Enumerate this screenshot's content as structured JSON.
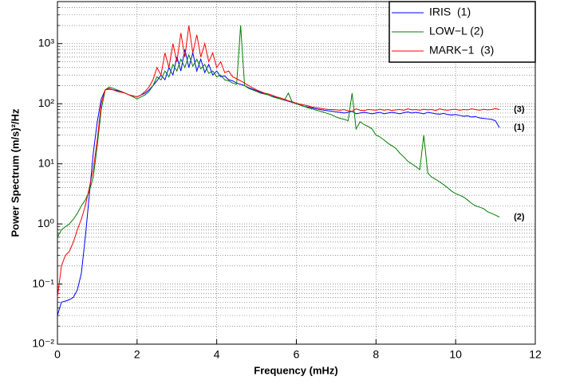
{
  "chart_data": {
    "type": "line",
    "xlabel": "Frequency (mHz)",
    "ylabel": "Power Spectrum (m/s)²/Hz",
    "log_y": true,
    "grid": true,
    "minor_grid": true,
    "legend": "upper right",
    "xlim": [
      0,
      12
    ],
    "xticks": [
      0,
      2,
      4,
      6,
      8,
      10,
      12
    ],
    "ylim": [
      0.01,
      5000
    ],
    "yticks": [
      {
        "value": 0.01,
        "label": "10⁻²"
      },
      {
        "value": 0.1,
        "label": "10⁻¹"
      },
      {
        "value": 1,
        "label": "10⁰"
      },
      {
        "value": 10,
        "label": "10¹"
      },
      {
        "value": 100,
        "label": "10²"
      },
      {
        "value": 1000,
        "label": "10³"
      }
    ],
    "x": [
      0,
      0.1,
      0.2,
      0.3,
      0.4,
      0.5,
      0.6,
      0.7,
      0.8,
      0.9,
      1,
      1.1,
      1.2,
      1.3,
      1.4,
      1.5,
      1.6,
      1.7,
      1.8,
      1.9,
      2,
      2.1,
      2.2,
      2.3,
      2.4,
      2.5,
      2.6,
      2.7,
      2.8,
      2.9,
      3,
      3.1,
      3.2,
      3.3,
      3.4,
      3.5,
      3.6,
      3.7,
      3.8,
      3.9,
      4,
      4.1,
      4.2,
      4.3,
      4.4,
      4.5,
      4.6,
      4.7,
      4.8,
      4.9,
      5,
      5.1,
      5.2,
      5.3,
      5.4,
      5.5,
      5.6,
      5.7,
      5.8,
      5.9,
      6,
      6.1,
      6.2,
      6.3,
      6.4,
      6.5,
      6.6,
      6.7,
      6.8,
      6.9,
      7,
      7.1,
      7.2,
      7.3,
      7.4,
      7.5,
      7.6,
      7.7,
      7.8,
      7.9,
      8,
      8.1,
      8.2,
      8.3,
      8.4,
      8.5,
      8.6,
      8.7,
      8.8,
      8.9,
      9,
      9.1,
      9.2,
      9.3,
      9.4,
      9.5,
      9.6,
      9.7,
      9.8,
      9.9,
      10,
      10.1,
      10.2,
      10.3,
      10.4,
      10.5,
      10.6,
      10.7,
      10.8,
      10.9,
      11,
      11.1
    ],
    "series": [
      {
        "name": "IRIS  (1)",
        "end_label": "(1)",
        "color": "#0000ff",
        "values": [
          0.03,
          0.05,
          0.052,
          0.055,
          0.06,
          0.08,
          0.15,
          0.6,
          3,
          15,
          50,
          120,
          170,
          175,
          170,
          165,
          160,
          150,
          140,
          135,
          130,
          140,
          150,
          170,
          200,
          240,
          300,
          250,
          400,
          300,
          600,
          350,
          800,
          400,
          700,
          350,
          550,
          330,
          450,
          300,
          350,
          280,
          290,
          250,
          240,
          220,
          210,
          200,
          185,
          175,
          165,
          155,
          148,
          140,
          132,
          128,
          120,
          115,
          110,
          105,
          100,
          95,
          90,
          88,
          85,
          82,
          80,
          78,
          76,
          75,
          73,
          72,
          70,
          72,
          75,
          68,
          70,
          72,
          70,
          68,
          70,
          72,
          68,
          70,
          72,
          70,
          68,
          71,
          73,
          70,
          72,
          70,
          68,
          72,
          70,
          68,
          67,
          69,
          66,
          65,
          66,
          64,
          62,
          63,
          60,
          61,
          58,
          57,
          56,
          55,
          52,
          40
        ]
      },
      {
        "name": "LOW−L (2)",
        "end_label": "(2)",
        "color": "#008000",
        "values": [
          0.6,
          0.8,
          0.9,
          1.0,
          1.2,
          1.5,
          2.0,
          2.5,
          3.5,
          6,
          20,
          80,
          170,
          190,
          180,
          170,
          160,
          150,
          140,
          130,
          120,
          130,
          140,
          160,
          200,
          280,
          250,
          350,
          280,
          450,
          350,
          550,
          400,
          650,
          420,
          550,
          380,
          450,
          320,
          350,
          280,
          300,
          250,
          240,
          220,
          210,
          2000,
          200,
          180,
          170,
          160,
          150,
          145,
          140,
          130,
          125,
          120,
          115,
          150,
          105,
          100,
          95,
          90,
          85,
          82,
          78,
          75,
          72,
          68,
          65,
          60,
          57,
          55,
          52,
          150,
          38,
          50,
          45,
          42,
          38,
          30,
          28,
          25,
          22,
          20,
          18,
          15,
          13,
          11,
          10,
          9,
          8,
          30,
          7,
          6,
          5.5,
          5,
          4.5,
          4,
          3.5,
          3.2,
          3,
          2.8,
          2.5,
          2.2,
          2,
          1.9,
          1.8,
          1.6,
          1.5,
          1.4,
          1.3
        ]
      },
      {
        "name": "MARK−1  (3)",
        "end_label": "(3)",
        "color": "#ff0000",
        "values": [
          0.06,
          0.2,
          0.3,
          0.35,
          0.5,
          0.8,
          1.2,
          2,
          4,
          8,
          25,
          100,
          170,
          180,
          170,
          160,
          155,
          150,
          140,
          135,
          130,
          140,
          160,
          190,
          250,
          400,
          300,
          700,
          400,
          1000,
          500,
          1500,
          600,
          2000,
          700,
          1400,
          600,
          1000,
          500,
          700,
          400,
          500,
          330,
          350,
          280,
          260,
          240,
          220,
          200,
          185,
          170,
          160,
          150,
          145,
          138,
          130,
          125,
          118,
          112,
          108,
          102,
          98,
          95,
          92,
          88,
          86,
          84,
          82,
          80,
          80,
          79,
          78,
          80,
          76,
          75,
          82,
          78,
          77,
          80,
          79,
          78,
          81,
          78,
          80,
          77,
          79,
          80,
          78,
          82,
          79,
          80,
          78,
          81,
          79,
          80,
          77,
          82,
          79,
          78,
          80,
          81,
          78,
          80,
          79,
          82,
          80,
          78,
          81,
          79,
          80,
          83,
          80
        ]
      }
    ]
  }
}
